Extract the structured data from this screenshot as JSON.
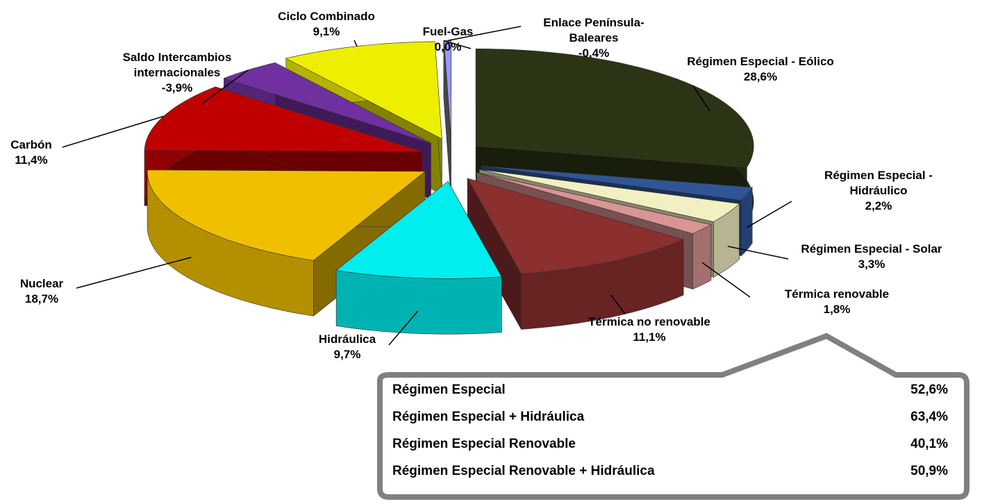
{
  "chart_data": {
    "type": "pie3d",
    "categories": [
      "Régimen Especial - Eólico",
      "Régimen Especial - Hidráulico",
      "Régimen Especial - Solar",
      "Térmica renovable",
      "Térmica no renovable",
      "Hidráulica",
      "Nuclear",
      "Carbón",
      "Saldo Intercambios internacionales",
      "Ciclo Combinado",
      "Fuel-Gas",
      "Enlace Península-Baleares"
    ],
    "values": [
      28.6,
      2.2,
      3.3,
      1.8,
      11.1,
      9.7,
      18.7,
      11.4,
      -3.9,
      9.1,
      0.0,
      -0.4
    ],
    "value_labels": [
      "28,6%",
      "2,2%",
      "3,3%",
      "1,8%",
      "11,1%",
      "9,7%",
      "18,7%",
      "11,4%",
      "-3,9%",
      "9,1%",
      "0,0%",
      "-0,4%"
    ],
    "colors": [
      "#2b3516",
      "#2f5597",
      "#f2f0c2",
      "#d99494",
      "#8b2f2f",
      "#00eeee",
      "#f0c000",
      "#c00000",
      "#7030a0",
      "#eeee00",
      "#808080",
      "#9999ff"
    ]
  },
  "summary": {
    "rows": [
      {
        "label": "Régimen Especial",
        "value": "52,6%"
      },
      {
        "label": "Régimen Especial + Hidráulica",
        "value": "63,4%"
      },
      {
        "label": "Régimen Especial Renovable",
        "value": "40,1%"
      },
      {
        "label": "Régimen Especial Renovable + Hidráulica",
        "value": "50,9%"
      }
    ]
  }
}
